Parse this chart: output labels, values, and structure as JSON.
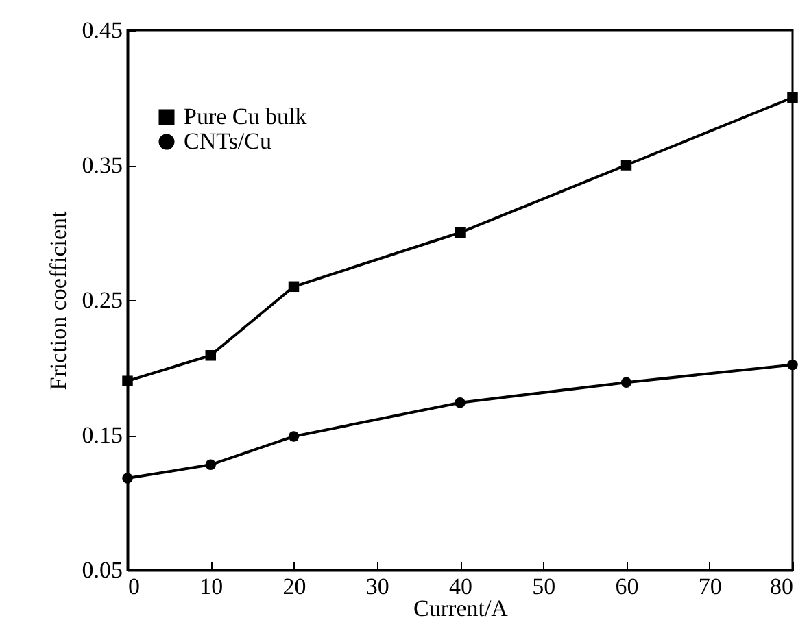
{
  "chart_data": {
    "type": "line",
    "xlabel": "Current/A",
    "ylabel": "Friction coefficient",
    "x": [
      0,
      10,
      20,
      40,
      60,
      80
    ],
    "series": [
      {
        "name": "Pure Cu bulk",
        "color": "#000000",
        "marker": "square",
        "values": [
          0.19,
          0.209,
          0.26,
          0.3,
          0.35,
          0.4
        ]
      },
      {
        "name": "CNTs/Cu",
        "color": "#000000",
        "marker": "circle",
        "values": [
          0.118,
          0.128,
          0.149,
          0.174,
          0.189,
          0.202
        ]
      }
    ],
    "xlim": [
      0,
      80
    ],
    "xticks": [
      0,
      10,
      20,
      30,
      40,
      50,
      60,
      70,
      80
    ],
    "ylim": [
      0.05,
      0.45
    ],
    "yticks": [
      0.05,
      0.15,
      0.25,
      0.35,
      0.45
    ],
    "grid": false,
    "legend": "top left",
    "line_style": "solid"
  }
}
